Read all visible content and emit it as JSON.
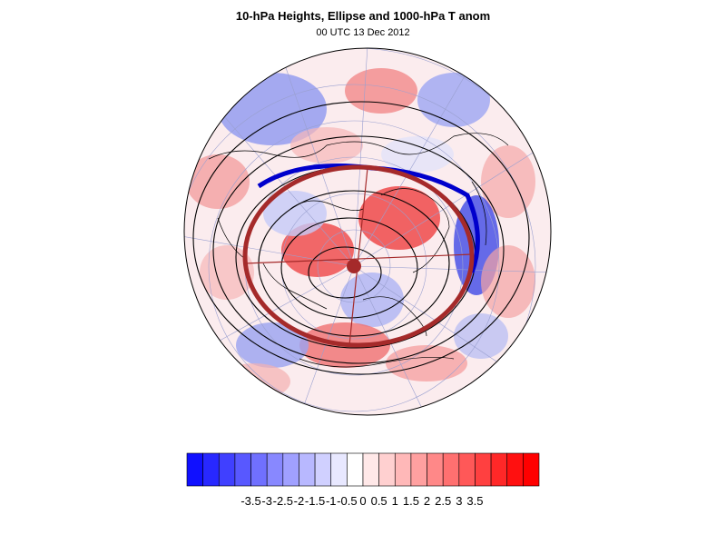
{
  "title": "10-hPa Heights, Ellipse and 1000-hPa T anom",
  "subtitle": "00 UTC 13 Dec 2012",
  "colorbar": {
    "tick_labels": [
      "-3.5",
      "-3",
      "-2.5",
      "-2",
      "-1.5",
      "-1",
      "-0.5",
      "0",
      "0.5",
      "1",
      "1.5",
      "2",
      "2.5",
      "3",
      "3.5"
    ],
    "bins": [
      "#1010ff",
      "#2828ff",
      "#4040ff",
      "#5858ff",
      "#7070ff",
      "#8888ff",
      "#a0a0ff",
      "#b8b8ff",
      "#d0d0ff",
      "#e8e8ff",
      "#ffffff",
      "#ffe8e8",
      "#ffd0d0",
      "#ffb8b8",
      "#ffa0a0",
      "#ff8888",
      "#ff7070",
      "#ff5858",
      "#ff4040",
      "#ff2828",
      "#ff1010",
      "#ff0000"
    ]
  },
  "legend_colors": {
    "ellipse": "#a52a2a",
    "blue_contour": "#0000cc",
    "height_contours": "#000000",
    "coastlines": "#000000",
    "gridlines": "#9aa0d0"
  }
}
